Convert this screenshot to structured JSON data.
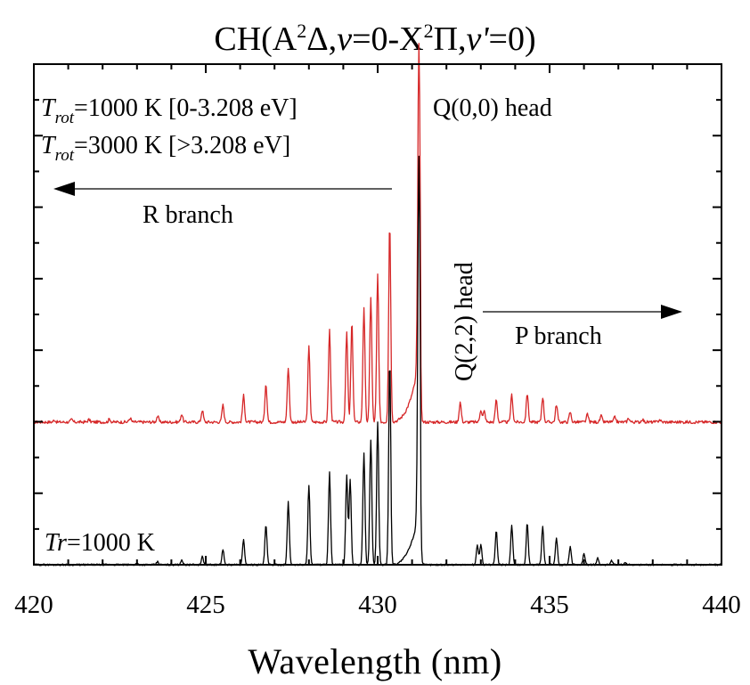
{
  "chart_data": {
    "type": "line",
    "title": {
      "prefix": "CH(A",
      "sup1": "2",
      "mid1": "Δ,",
      "v1": "v",
      "mid2": "=0-X",
      "sup2": "2",
      "mid3": "Π,",
      "v2": "v'",
      "suffix": "=0)"
    },
    "xlabel": "Wavelength (nm)",
    "ylabel": "",
    "xlim": [
      420,
      440
    ],
    "ylim": [
      0,
      100
    ],
    "xticks": [
      420,
      425,
      430,
      435,
      440
    ],
    "x_tick_labels": [
      "420",
      "425",
      "430",
      "435",
      "440"
    ],
    "y_tick_labels": "none",
    "grid": false,
    "legend": "none",
    "annotations": {
      "red_label_line1": {
        "sym": "T",
        "sub": "rot",
        "text": "=1000 K [0-3.208 eV]"
      },
      "red_label_line2": {
        "sym": "T",
        "sub": "rot",
        "text": "=3000 K [>3.208 eV]"
      },
      "black_label": {
        "sym": "Tr",
        "text": "=1000 K"
      },
      "q00_head": "Q(0,0) head",
      "q22_head": "Q(2,2) head",
      "r_branch": "R branch",
      "p_branch": "P branch"
    },
    "series": [
      {
        "color": "#d62728",
        "baseline": 28.5,
        "peaks": [
          [
            420.6,
            0.4
          ],
          [
            421.1,
            0.5
          ],
          [
            421.6,
            0.5
          ],
          [
            422.2,
            0.6
          ],
          [
            422.8,
            0.8
          ],
          [
            423.6,
            1.2
          ],
          [
            424.3,
            1.6
          ],
          [
            424.9,
            2.4
          ],
          [
            425.5,
            3.4
          ],
          [
            426.1,
            5.3
          ],
          [
            426.75,
            7.8
          ],
          [
            427.4,
            11.0
          ],
          [
            428.0,
            15.0
          ],
          [
            428.6,
            18.5
          ],
          [
            429.1,
            18.0
          ],
          [
            429.25,
            20.0
          ],
          [
            429.6,
            23.0
          ],
          [
            429.8,
            25.0
          ],
          [
            430.0,
            29.5
          ],
          [
            430.35,
            40.0
          ],
          [
            431.2,
            64.0
          ],
          [
            432.4,
            4.0
          ],
          [
            433.0,
            2.5
          ],
          [
            433.1,
            2.2
          ],
          [
            433.45,
            4.5
          ],
          [
            433.9,
            5.5
          ],
          [
            434.35,
            5.8
          ],
          [
            434.8,
            5.0
          ],
          [
            435.2,
            3.5
          ],
          [
            435.6,
            2.0
          ],
          [
            436.1,
            1.5
          ],
          [
            436.5,
            1.2
          ],
          [
            436.9,
            1.0
          ],
          [
            437.3,
            0.8
          ],
          [
            437.7,
            0.6
          ],
          [
            438.2,
            0.5
          ]
        ]
      },
      {
        "color": "#000000",
        "baseline": 0,
        "peaks": [
          [
            423.0,
            0.3
          ],
          [
            423.6,
            0.6
          ],
          [
            424.3,
            1.0
          ],
          [
            424.9,
            1.6
          ],
          [
            425.5,
            2.9
          ],
          [
            426.1,
            5.0
          ],
          [
            426.75,
            8.0
          ],
          [
            427.4,
            12.5
          ],
          [
            428.0,
            16.0
          ],
          [
            428.6,
            18.5
          ],
          [
            429.1,
            18.0
          ],
          [
            429.2,
            17.0
          ],
          [
            429.6,
            22.5
          ],
          [
            429.8,
            25.0
          ],
          [
            430.0,
            28.5
          ],
          [
            430.35,
            41.0
          ],
          [
            431.2,
            71.5
          ],
          [
            432.9,
            4.0
          ],
          [
            433.0,
            4.0
          ],
          [
            433.45,
            6.8
          ],
          [
            433.9,
            7.9
          ],
          [
            434.35,
            8.4
          ],
          [
            434.8,
            7.5
          ],
          [
            435.2,
            5.5
          ],
          [
            435.6,
            3.5
          ],
          [
            436.0,
            2.2
          ],
          [
            436.4,
            1.4
          ],
          [
            436.8,
            0.8
          ],
          [
            437.2,
            0.5
          ]
        ]
      }
    ]
  }
}
